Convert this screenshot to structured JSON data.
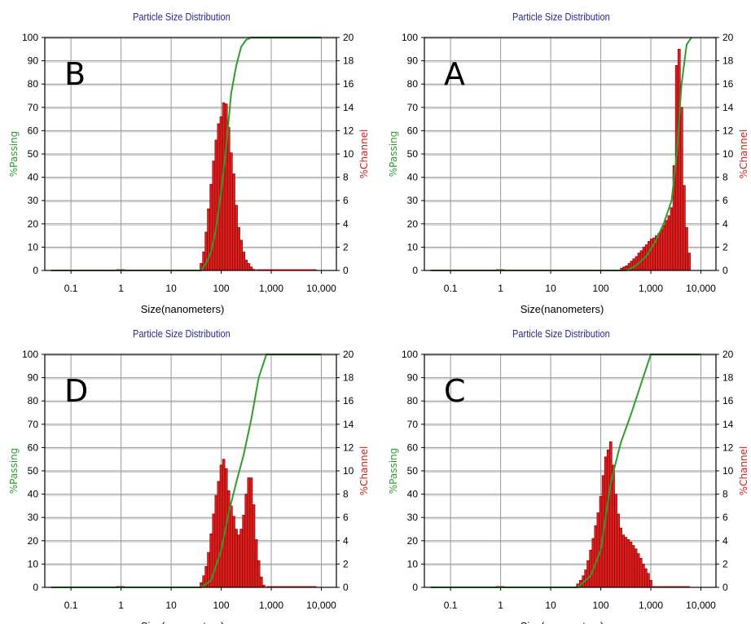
{
  "colors": {
    "passing": "#2e9d2e",
    "channel": "#dd1f1f",
    "grid": "#9a9a9a",
    "frame": "#000000",
    "title": "#2b2b8c"
  },
  "chart_data": [
    {
      "type": "bar",
      "panel": "B",
      "title": "Particle Size Distribution",
      "xlabel": "Size(nanometers)",
      "ylabel": "%Passing",
      "y2label": "%Channel",
      "xscale": "log",
      "xlim": [
        0.03,
        20000
      ],
      "ylim": [
        0,
        100
      ],
      "y2lim": [
        0,
        20
      ],
      "xticks": [
        "0.1",
        "1",
        "10",
        "100",
        "1,000",
        "10,000"
      ],
      "yticks": [
        "0",
        "10",
        "20",
        "30",
        "40",
        "50",
        "60",
        "70",
        "80",
        "90",
        "100"
      ],
      "y2ticks": [
        "0",
        "2",
        "4",
        "6",
        "8",
        "10",
        "12",
        "14",
        "16",
        "18",
        "20"
      ],
      "grid": true,
      "series": [
        {
          "name": "%Channel",
          "axis": "right",
          "x": [
            40,
            45,
            50,
            56,
            63,
            71,
            79,
            89,
            100,
            112,
            126,
            141,
            158,
            178,
            200,
            224,
            251,
            282,
            316,
            355,
            398,
            447
          ],
          "values": [
            0.6,
            1.6,
            3.3,
            5.3,
            7.4,
            9.4,
            11.2,
            12.6,
            13.2,
            14.4,
            14.3,
            12.3,
            10.1,
            8.3,
            5.6,
            3.7,
            2.6,
            1.6,
            0.9,
            0.6,
            0.3,
            0.1
          ]
        },
        {
          "name": "%Passing",
          "axis": "left",
          "x": [
            0.04,
            0.8,
            40,
            50,
            63,
            79,
            100,
            126,
            158,
            200,
            251,
            316,
            398,
            447,
            500,
            10000
          ],
          "values": [
            0,
            0,
            0,
            3,
            8,
            18,
            34,
            53,
            76,
            88,
            96,
            99,
            100,
            100,
            100,
            100
          ]
        }
      ],
      "flat_red_segments": [
        [
          0.8,
          1.2
        ],
        [
          500,
          8000
        ]
      ]
    },
    {
      "type": "bar",
      "panel": "A",
      "title": "Particle Size Distribution",
      "xlabel": "Size(nanometers)",
      "ylabel": "%Passing",
      "y2label": "%Channel",
      "xscale": "log",
      "xlim": [
        0.03,
        20000
      ],
      "ylim": [
        0,
        100
      ],
      "y2lim": [
        0,
        20
      ],
      "xticks": [
        "0.1",
        "1",
        "10",
        "100",
        "1,000",
        "10,000"
      ],
      "yticks": [
        "0",
        "10",
        "20",
        "30",
        "40",
        "50",
        "60",
        "70",
        "80",
        "90",
        "100"
      ],
      "y2ticks": [
        "0",
        "2",
        "4",
        "6",
        "8",
        "10",
        "12",
        "14",
        "16",
        "18",
        "20"
      ],
      "grid": true,
      "series": [
        {
          "name": "%Channel",
          "axis": "right",
          "x": [
            260,
            290,
            330,
            370,
            410,
            460,
            520,
            580,
            650,
            730,
            820,
            920,
            1030,
            1160,
            1300,
            1460,
            1640,
            1840,
            2060,
            2310,
            2600,
            2920,
            3270,
            3670,
            4120,
            4620,
            5180,
            5820
          ],
          "values": [
            0.2,
            0.3,
            0.4,
            0.6,
            0.8,
            1.0,
            1.2,
            1.5,
            1.7,
            2.0,
            2.2,
            2.5,
            2.7,
            2.8,
            3.0,
            3.2,
            3.5,
            3.9,
            4.3,
            4.7,
            5.4,
            9.0,
            17.6,
            19.0,
            14.0,
            7.3,
            3.7,
            1.5
          ]
        },
        {
          "name": "%Passing",
          "axis": "left",
          "x": [
            0.04,
            0.8,
            330,
            500,
            800,
            1200,
            1800,
            2600,
            3300,
            4100,
            5200,
            6500
          ],
          "values": [
            0,
            0,
            0,
            2,
            6,
            12,
            20,
            30,
            50,
            80,
            97,
            100
          ]
        }
      ],
      "flat_red_segments": [
        [
          0.8,
          1.2
        ]
      ]
    },
    {
      "type": "bar",
      "panel": "D",
      "title": "Particle Size Distribution",
      "xlabel": "Size(nanometers)",
      "ylabel": "%Passing",
      "y2label": "%Channel",
      "xscale": "log",
      "xlim": [
        0.03,
        20000
      ],
      "ylim": [
        0,
        100
      ],
      "y2lim": [
        0,
        20
      ],
      "xticks": [
        "0.1",
        "1",
        "10",
        "100",
        "1,000",
        "10,000"
      ],
      "yticks": [
        "0",
        "10",
        "20",
        "30",
        "40",
        "50",
        "60",
        "70",
        "80",
        "90",
        "100"
      ],
      "y2ticks": [
        "0",
        "2",
        "4",
        "6",
        "8",
        "10",
        "12",
        "14",
        "16",
        "18",
        "20"
      ],
      "grid": true,
      "series": [
        {
          "name": "%Channel",
          "axis": "right",
          "x": [
            40,
            45,
            50,
            56,
            63,
            71,
            79,
            89,
            100,
            112,
            126,
            141,
            158,
            178,
            200,
            224,
            251,
            282,
            316,
            355,
            398,
            447,
            501,
            562,
            631,
            708
          ],
          "values": [
            0.4,
            1.0,
            1.8,
            3.0,
            4.6,
            6.3,
            7.9,
            9.1,
            10.5,
            11.0,
            10.2,
            8.3,
            7.0,
            6.1,
            5.0,
            4.5,
            5.0,
            6.2,
            8.0,
            9.4,
            9.4,
            7.1,
            4.1,
            2.3,
            0.9,
            0.2
          ]
        },
        {
          "name": "%Passing",
          "axis": "left",
          "x": [
            0.04,
            0.8,
            40,
            63,
            100,
            141,
            200,
            282,
            398,
            562,
            800,
            10000
          ],
          "values": [
            0,
            0,
            0,
            3,
            16,
            32,
            45,
            57,
            72,
            90,
            100,
            100
          ]
        }
      ],
      "flat_red_segments": [
        [
          0.8,
          1.2
        ],
        [
          800,
          8000
        ]
      ]
    },
    {
      "type": "bar",
      "panel": "C",
      "title": "Particle Size Distribution",
      "xlabel": "Size(nanometers)",
      "ylabel": "%Passing",
      "y2label": "%Channel",
      "xscale": "log",
      "xlim": [
        0.03,
        20000
      ],
      "ylim": [
        0,
        100
      ],
      "y2lim": [
        0,
        20
      ],
      "xticks": [
        "0.1",
        "1",
        "10",
        "100",
        "1,000",
        "10,000"
      ],
      "yticks": [
        "0",
        "10",
        "20",
        "30",
        "40",
        "50",
        "60",
        "70",
        "80",
        "90",
        "100"
      ],
      "y2ticks": [
        "0",
        "2",
        "4",
        "6",
        "8",
        "10",
        "12",
        "14",
        "16",
        "18",
        "20"
      ],
      "grid": true,
      "series": [
        {
          "name": "%Channel",
          "axis": "right",
          "x": [
            35,
            40,
            45,
            50,
            56,
            63,
            71,
            79,
            89,
            100,
            112,
            126,
            141,
            158,
            178,
            200,
            224,
            251,
            282,
            316,
            355,
            398,
            447,
            501,
            562,
            631,
            708,
            794,
            891,
            1000
          ],
          "values": [
            0.3,
            0.6,
            1.0,
            1.5,
            2.3,
            3.2,
            4.2,
            5.3,
            6.4,
            7.8,
            9.6,
            11.2,
            11.8,
            12.5,
            10.5,
            8.0,
            6.3,
            5.1,
            4.5,
            4.3,
            4.1,
            3.9,
            3.6,
            3.3,
            2.9,
            2.5,
            2.0,
            1.6,
            1.2,
            0.6
          ]
        },
        {
          "name": "%Passing",
          "axis": "left",
          "x": [
            0.04,
            0.8,
            35,
            63,
            100,
            158,
            251,
            398,
            631,
            1000,
            10000
          ],
          "values": [
            0,
            0,
            0,
            5,
            16,
            45,
            62,
            74,
            87,
            100,
            100
          ]
        }
      ],
      "flat_red_segments": [
        [
          0.8,
          1.2
        ],
        [
          1000,
          6000
        ]
      ]
    }
  ],
  "panels": [
    {
      "letter": "B",
      "title": "Particle Size Distribution"
    },
    {
      "letter": "A",
      "title": "Particle Size Distribution"
    },
    {
      "letter": "D",
      "title": "Particle Size Distribution"
    },
    {
      "letter": "C",
      "title": "Particle Size Distribution"
    }
  ]
}
